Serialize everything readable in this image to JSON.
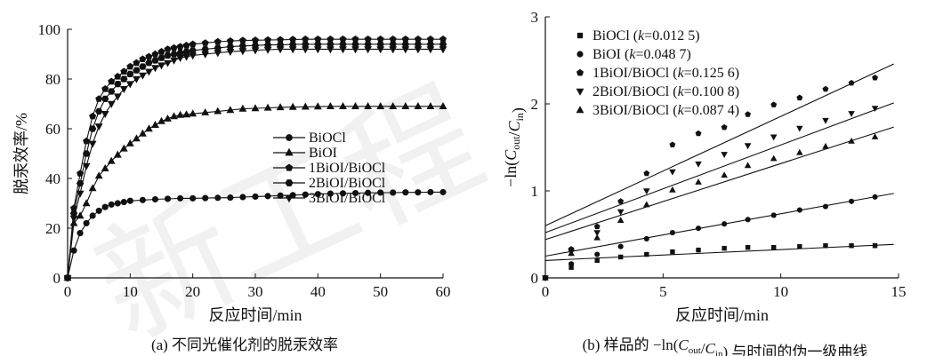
{
  "panels": [
    {
      "caption": "(a) 不同光催化剂的脱汞效率",
      "chart_data": {
        "type": "line",
        "xlabel": "反应时间/min",
        "ylabel": "脱汞效率/%",
        "xlim": [
          0,
          60
        ],
        "ylim": [
          0,
          100
        ],
        "xticks": [
          "0",
          "10",
          "20",
          "30",
          "40",
          "50",
          "60"
        ],
        "yticks": [
          "0",
          "20",
          "40",
          "60",
          "80",
          "100"
        ],
        "legend_position": "center-right",
        "series": [
          {
            "name": "BiOCl",
            "marker": "circle",
            "x": [
              0,
              1,
              2,
              3,
              4,
              5,
              6,
              7,
              8,
              9,
              10,
              12,
              14,
              16,
              18,
              20,
              22,
              24,
              26,
              28,
              30,
              32,
              34,
              36,
              38,
              40,
              42,
              44,
              46,
              48,
              50,
              52,
              54,
              56,
              58,
              60
            ],
            "y": [
              0,
              11,
              18,
              22,
              25,
              27,
              28.5,
              29.5,
              30,
              30.5,
              31,
              31.3,
              31.6,
              31.8,
              32,
              32,
              32.1,
              32.2,
              32.3,
              32.5,
              32.7,
              32.9,
              33.1,
              33.3,
              33.5,
              33.7,
              33.9,
              34,
              34.1,
              34.2,
              34.3,
              34.3,
              34.4,
              34.4,
              34.5,
              34.5
            ]
          },
          {
            "name": "BiOI",
            "marker": "triangle-up",
            "x": [
              0,
              1,
              2,
              3,
              4,
              5,
              6,
              7,
              8,
              9,
              10,
              11,
              12,
              13,
              14,
              15,
              16,
              17,
              18,
              19,
              20,
              22,
              24,
              26,
              28,
              30,
              32,
              34,
              36,
              38,
              40,
              42,
              44,
              46,
              48,
              50,
              52,
              54,
              56,
              58,
              60
            ],
            "y": [
              0,
              22,
              25,
              30,
              36,
              41,
              44,
              47,
              49.5,
              52,
              54,
              56,
              58,
              60,
              61.5,
              63,
              64,
              65,
              65.5,
              65.7,
              66,
              66.5,
              67,
              67.5,
              68,
              68.2,
              68.4,
              68.6,
              68.7,
              68.8,
              68.9,
              69,
              69,
              69,
              69,
              69,
              69,
              69,
              69,
              69,
              69
            ]
          },
          {
            "name": "1BiOI/BiOCl",
            "marker": "pentagon",
            "x": [
              0,
              1,
              2,
              3,
              4,
              5,
              6,
              7,
              8,
              9,
              10,
              11,
              12,
              13,
              14,
              15,
              16,
              17,
              18,
              19,
              20,
              22,
              24,
              26,
              28,
              30,
              32,
              34,
              36,
              38,
              40,
              42,
              44,
              46,
              48,
              50,
              52,
              54,
              56,
              58,
              60
            ],
            "y": [
              0,
              28,
              42,
              55,
              65,
              72,
              76,
              79,
              81,
              83,
              85,
              86.5,
              88,
              89,
              90,
              91,
              92,
              92.5,
              93,
              93.5,
              94,
              94.5,
              95,
              95.3,
              95.5,
              95.6,
              95.7,
              95.8,
              95.9,
              96,
              96,
              96,
              96,
              96,
              96,
              96,
              96,
              96,
              96,
              96,
              96
            ]
          },
          {
            "name": "2BiOI/BiOCl",
            "marker": "hexagon",
            "x": [
              0,
              1,
              2,
              3,
              4,
              5,
              6,
              7,
              8,
              9,
              10,
              11,
              12,
              13,
              14,
              15,
              16,
              17,
              18,
              19,
              20,
              22,
              24,
              26,
              28,
              30,
              32,
              34,
              36,
              38,
              40,
              42,
              44,
              46,
              48,
              50,
              52,
              54,
              56,
              58,
              60
            ],
            "y": [
              0,
              26,
              38,
              50,
              60,
              67,
              72,
              75,
              78,
              80,
              82,
              83.5,
              85,
              86.5,
              87.5,
              88.5,
              89.5,
              90,
              90.5,
              91,
              91.5,
              92,
              92.5,
              93,
              93.3,
              93.5,
              93.7,
              93.8,
              93.9,
              94,
              94,
              94,
              94,
              94,
              94,
              94,
              94,
              94,
              94,
              94,
              94
            ]
          },
          {
            "name": "3BiOI/BiOCl",
            "marker": "triangle-down",
            "x": [
              0,
              1,
              2,
              3,
              4,
              5,
              6,
              7,
              8,
              9,
              10,
              11,
              12,
              13,
              14,
              15,
              16,
              17,
              18,
              19,
              20,
              22,
              24,
              26,
              28,
              30,
              32,
              34,
              36,
              38,
              40,
              42,
              44,
              46,
              48,
              50,
              52,
              54,
              56,
              58,
              60
            ],
            "y": [
              0,
              24,
              34,
              45,
              54,
              61,
              66,
              70,
              73,
              76,
              78,
              80,
              81.5,
              83,
              84.5,
              85.5,
              86.5,
              87.5,
              88.5,
              89,
              89.5,
              90,
              90.5,
              91,
              91.3,
              91.6,
              91.8,
              92,
              92,
              92,
              92,
              92,
              92,
              92,
              92,
              92,
              92,
              92,
              92,
              92,
              92
            ]
          }
        ]
      }
    },
    {
      "caption": "(b) 样品的 −ln(C_out/C_in) 与时间的伪一级曲线",
      "chart_data": {
        "type": "scatter",
        "xlabel": "反应时间/min",
        "ylabel": "−ln(C_out/C_in)",
        "xlim": [
          0,
          15
        ],
        "ylim": [
          0,
          3
        ],
        "xticks": [
          "0",
          "5",
          "10",
          "15"
        ],
        "yticks": [
          "0",
          "1",
          "2",
          "3"
        ],
        "legend_position": "top-left",
        "fit_lines": true,
        "series": [
          {
            "name": "BiOCl (k=0.012 5)",
            "label_base": "BiOCl (",
            "k_symbol": "k",
            "k_value": "=0.012 5)",
            "marker": "square",
            "x": [
              0,
              1.1,
              2.2,
              3.2,
              4.3,
              5.4,
              6.5,
              7.6,
              8.6,
              9.7,
              10.8,
              11.9,
              13,
              14
            ],
            "y": [
              0,
              0.12,
              0.2,
              0.24,
              0.27,
              0.3,
              0.32,
              0.34,
              0.35,
              0.35,
              0.36,
              0.37,
              0.37,
              0.37
            ],
            "fit_intercept": 0.2,
            "fit_slope": 0.0125
          },
          {
            "name": "BiOI (k=0.048 7)",
            "label_base": "BiOI (",
            "k_symbol": "k",
            "k_value": "=0.048 7)",
            "marker": "circle",
            "x": [
              0,
              1.1,
              2.2,
              3.2,
              4.3,
              5.4,
              6.5,
              7.6,
              8.6,
              9.7,
              10.8,
              11.9,
              13,
              14
            ],
            "y": [
              0,
              0.16,
              0.27,
              0.36,
              0.45,
              0.52,
              0.57,
              0.62,
              0.67,
              0.72,
              0.78,
              0.82,
              0.88,
              0.93
            ],
            "fit_intercept": 0.25,
            "fit_slope": 0.0487
          },
          {
            "name": "1BiOI/BiOCl (k=0.125 6)",
            "label_base": "1BiOI/BiOCl (",
            "k_symbol": "k",
            "k_value": "=0.125 6)",
            "marker": "pentagon",
            "x": [
              0,
              1.1,
              2.2,
              3.2,
              4.3,
              5.4,
              6.5,
              7.6,
              8.6,
              9.7,
              10.8,
              11.9,
              13,
              14
            ],
            "y": [
              0,
              0.33,
              0.59,
              0.88,
              1.2,
              1.53,
              1.66,
              1.73,
              1.88,
              1.99,
              2.07,
              2.17,
              2.24,
              2.3
            ],
            "fit_intercept": 0.6,
            "fit_slope": 0.1256
          },
          {
            "name": "2BiOI/BiOCl (k=0.100 8)",
            "label_base": "2BiOI/BiOCl (",
            "k_symbol": "k",
            "k_value": "=0.100 8)",
            "marker": "triangle-down",
            "x": [
              0,
              1.1,
              2.2,
              3.2,
              4.3,
              5.4,
              6.5,
              7.6,
              8.6,
              9.7,
              10.8,
              11.9,
              13,
              14
            ],
            "y": [
              0,
              0.3,
              0.52,
              0.76,
              1.0,
              1.22,
              1.31,
              1.42,
              1.52,
              1.62,
              1.72,
              1.81,
              1.89,
              1.95
            ],
            "fit_intercept": 0.52,
            "fit_slope": 0.1008
          },
          {
            "name": "3BiOI/BiOCl (k=0.087 4)",
            "label_base": "3BiOI/BiOCl (",
            "k_symbol": "k",
            "k_value": "=0.087 4)",
            "marker": "triangle-up",
            "x": [
              0,
              1.1,
              2.2,
              3.2,
              4.3,
              5.4,
              6.5,
              7.6,
              8.6,
              9.7,
              10.8,
              11.9,
              13,
              14
            ],
            "y": [
              0,
              0.28,
              0.46,
              0.66,
              0.84,
              1.01,
              1.1,
              1.18,
              1.29,
              1.37,
              1.44,
              1.51,
              1.57,
              1.62
            ],
            "fit_intercept": 0.44,
            "fit_slope": 0.0874
          }
        ]
      }
    }
  ],
  "watermark": {
    "text": "新工程"
  }
}
